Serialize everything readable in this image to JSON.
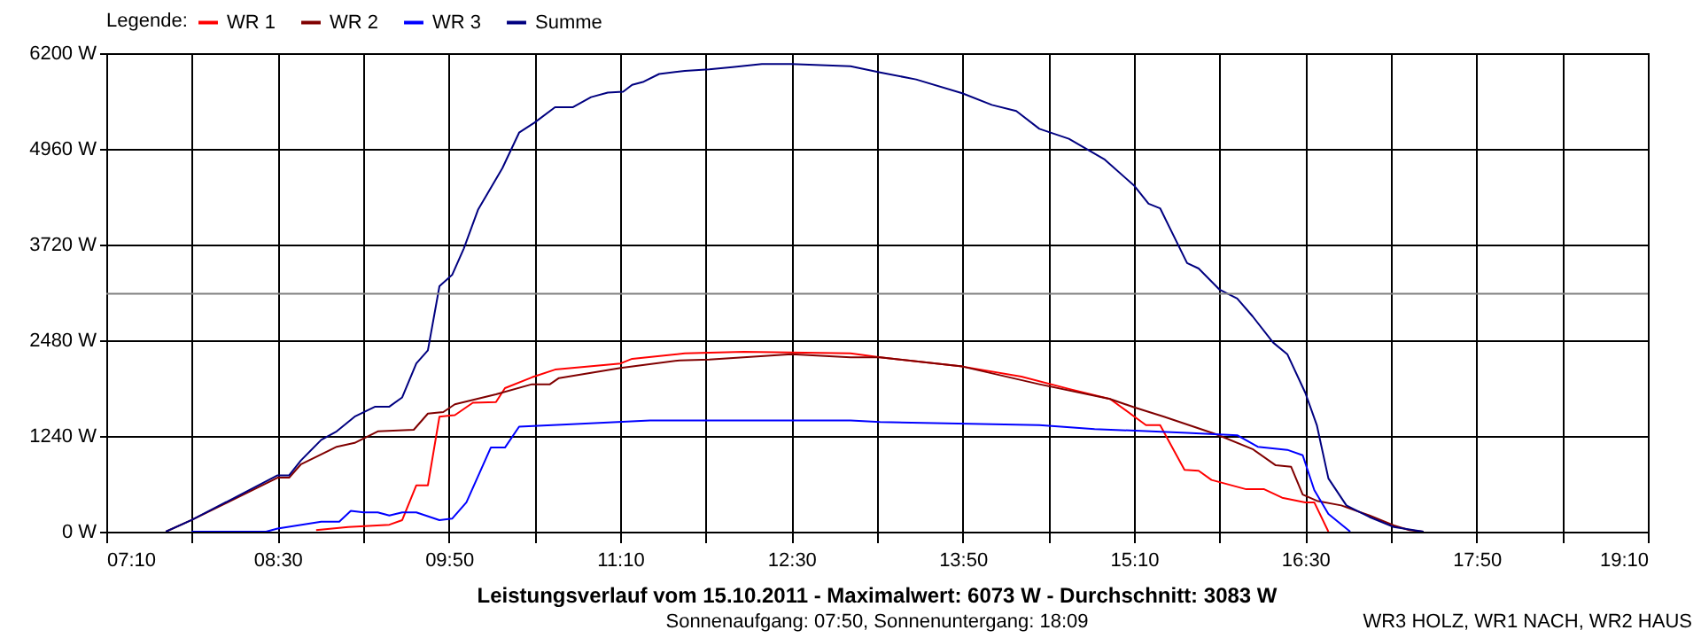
{
  "chart_data": {
    "type": "line",
    "title": "Leistungsverlauf vom 15.10.2011 - Maximalwert: 6073 W - Durchschnitt: 3083 W",
    "subtitle": "Sonnenaufgang: 07:50, Sonnenuntergang: 18:09",
    "legend_title": "Legende:",
    "annotations": [
      "WR3 HOLZ, WR1 NACH, WR2 HAUS"
    ],
    "xlim": [
      7.1667,
      19.1667
    ],
    "xticks": [
      {
        "value": 7.1667,
        "label": "07:10"
      },
      {
        "value": 7.8333,
        "label": null
      },
      {
        "value": 8.5,
        "label": "08:30"
      },
      {
        "value": 9.1667,
        "label": null
      },
      {
        "value": 9.8333,
        "label": "09:50"
      },
      {
        "value": 10.5,
        "label": null
      },
      {
        "value": 11.1667,
        "label": "11:10"
      },
      {
        "value": 11.8333,
        "label": null
      },
      {
        "value": 12.5,
        "label": "12:30"
      },
      {
        "value": 13.1667,
        "label": null
      },
      {
        "value": 13.8333,
        "label": "13:50"
      },
      {
        "value": 14.5,
        "label": null
      },
      {
        "value": 15.1667,
        "label": "15:10"
      },
      {
        "value": 15.8333,
        "label": null
      },
      {
        "value": 16.5,
        "label": "16:30"
      },
      {
        "value": 17.1667,
        "label": null
      },
      {
        "value": 17.8333,
        "label": "17:50"
      },
      {
        "value": 18.5,
        "label": null
      },
      {
        "value": 19.1667,
        "label": "19:10"
      }
    ],
    "ylim": [
      0,
      6200
    ],
    "yticks": [
      {
        "value": 0,
        "label": "0 W"
      },
      {
        "value": 1240,
        "label": "1240 W"
      },
      {
        "value": 2480,
        "label": "2480 W"
      },
      {
        "value": 3720,
        "label": "3720 W"
      },
      {
        "value": 4960,
        "label": "4960 W"
      },
      {
        "value": 6200,
        "label": "6200 W"
      }
    ],
    "grid": true,
    "legend": "top left",
    "line_style": "solid",
    "ref_lines": [
      {
        "axis": "y",
        "value": 3083,
        "color": "#808080"
      }
    ],
    "series": [
      {
        "name": "WR 1",
        "color": "#ff0000",
        "x": [
          8.8,
          9.05,
          9.37,
          9.47,
          9.58,
          9.67,
          9.76,
          9.88,
          10.02,
          10.2,
          10.27,
          10.48,
          10.66,
          11.17,
          11.26,
          11.67,
          12.13,
          12.96,
          13.19,
          13.83,
          14.29,
          14.66,
          14.98,
          15.17,
          15.26,
          15.37,
          15.56,
          15.67,
          15.77,
          16.04,
          16.18,
          16.32,
          16.5,
          16.57,
          16.68
        ],
        "values": [
          20,
          60,
          90,
          150,
          600,
          600,
          1490,
          1510,
          1670,
          1680,
          1860,
          2000,
          2100,
          2180,
          2240,
          2310,
          2330,
          2310,
          2260,
          2140,
          2010,
          1850,
          1720,
          1490,
          1380,
          1380,
          800,
          790,
          670,
          550,
          550,
          440,
          380,
          380,
          0
        ]
      },
      {
        "name": "WR 2",
        "color": "#800000",
        "x": [
          7.63,
          7.83,
          8.5,
          8.59,
          8.68,
          8.96,
          9.1,
          9.28,
          9.56,
          9.67,
          9.79,
          9.88,
          10.2,
          10.48,
          10.62,
          10.69,
          11.17,
          11.63,
          11.86,
          12.5,
          12.96,
          13.19,
          13.83,
          14.43,
          14.98,
          15.17,
          15.4,
          15.81,
          16.09,
          16.27,
          16.39,
          16.48,
          16.59,
          16.78,
          17.0,
          17.19,
          17.31,
          17.42
        ],
        "values": [
          0,
          150,
          700,
          700,
          870,
          1100,
          1150,
          1300,
          1320,
          1530,
          1550,
          1650,
          1780,
          1910,
          1910,
          1990,
          2120,
          2220,
          2230,
          2300,
          2260,
          2260,
          2140,
          1910,
          1720,
          1610,
          1490,
          1260,
          1070,
          860,
          840,
          480,
          400,
          340,
          210,
          80,
          20,
          0
        ]
      },
      {
        "name": "WR 3",
        "color": "#0000ff",
        "x": [
          7.83,
          8.41,
          8.5,
          8.84,
          8.98,
          9.07,
          9.17,
          9.28,
          9.37,
          9.47,
          9.58,
          9.76,
          9.86,
          9.97,
          10.16,
          10.27,
          10.38,
          10.75,
          11.4,
          11.86,
          12.96,
          13.19,
          14.43,
          14.86,
          15.58,
          15.97,
          16.13,
          16.36,
          16.48,
          16.57,
          16.68,
          16.85
        ],
        "values": [
          0,
          0,
          40,
          130,
          130,
          270,
          250,
          250,
          210,
          250,
          250,
          150,
          170,
          380,
          1090,
          1090,
          1360,
          1390,
          1440,
          1440,
          1440,
          1420,
          1380,
          1330,
          1280,
          1250,
          1100,
          1060,
          990,
          540,
          230,
          0
        ]
      },
      {
        "name": "Summe",
        "color": "#000080",
        "x": [
          7.63,
          7.83,
          8.5,
          8.59,
          8.68,
          8.84,
          8.96,
          9.1,
          9.26,
          9.37,
          9.47,
          9.58,
          9.67,
          9.76,
          9.86,
          9.95,
          10.06,
          10.25,
          10.38,
          10.5,
          10.66,
          10.8,
          10.94,
          11.07,
          11.19,
          11.26,
          11.35,
          11.47,
          11.67,
          11.86,
          12.04,
          12.27,
          12.5,
          12.96,
          13.19,
          13.47,
          13.83,
          14.06,
          14.25,
          14.43,
          14.66,
          14.94,
          15.17,
          15.28,
          15.37,
          15.58,
          15.67,
          15.83,
          15.97,
          16.09,
          16.25,
          16.36,
          16.5,
          16.59,
          16.68,
          16.82,
          17.0,
          17.19,
          17.42
        ],
        "values": [
          0,
          150,
          730,
          730,
          920,
          1190,
          1300,
          1490,
          1620,
          1620,
          1740,
          2180,
          2350,
          3180,
          3330,
          3670,
          4170,
          4710,
          5170,
          5300,
          5500,
          5500,
          5630,
          5690,
          5700,
          5790,
          5830,
          5930,
          5970,
          5990,
          6020,
          6060,
          6060,
          6030,
          5950,
          5860,
          5680,
          5530,
          5450,
          5220,
          5090,
          4820,
          4480,
          4250,
          4190,
          3480,
          3410,
          3140,
          3020,
          2790,
          2450,
          2300,
          1800,
          1380,
          690,
          340,
          190,
          60,
          0
        ]
      }
    ]
  }
}
